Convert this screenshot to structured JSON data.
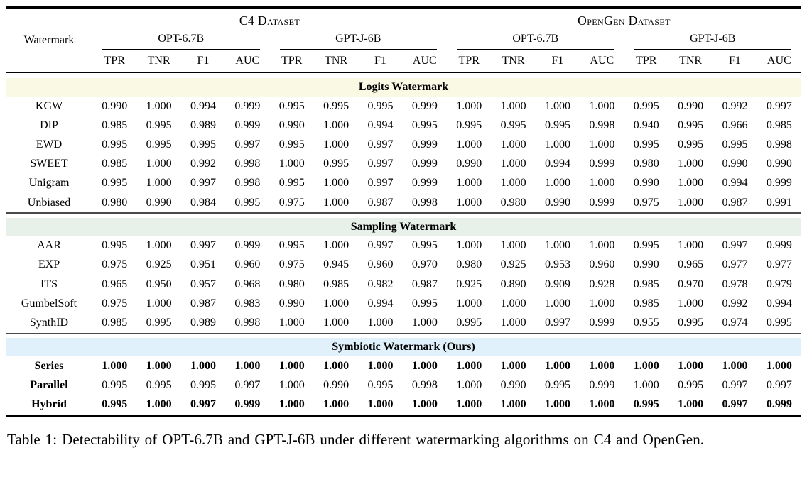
{
  "table": {
    "corner_header": "Watermark",
    "datasets": [
      "C4 Dataset",
      "OpenGen Dataset"
    ],
    "models": [
      "OPT-6.7B",
      "GPT-J-6B",
      "OPT-6.7B",
      "GPT-J-6B"
    ],
    "metrics": [
      "TPR",
      "TNR",
      "F1",
      "AUC"
    ],
    "sections": [
      {
        "title": "Logits Watermark",
        "band_color": "#faf9e4",
        "rows": [
          {
            "label": "KGW",
            "bold_label": false,
            "bold_values": false,
            "values": [
              "0.990",
              "1.000",
              "0.994",
              "0.999",
              "0.995",
              "0.995",
              "0.995",
              "0.999",
              "1.000",
              "1.000",
              "1.000",
              "1.000",
              "0.995",
              "0.990",
              "0.992",
              "0.997"
            ]
          },
          {
            "label": "DIP",
            "bold_label": false,
            "bold_values": false,
            "values": [
              "0.985",
              "0.995",
              "0.989",
              "0.999",
              "0.990",
              "1.000",
              "0.994",
              "0.995",
              "0.995",
              "0.995",
              "0.995",
              "0.998",
              "0.940",
              "0.995",
              "0.966",
              "0.985"
            ]
          },
          {
            "label": "EWD",
            "bold_label": false,
            "bold_values": false,
            "values": [
              "0.995",
              "0.995",
              "0.995",
              "0.997",
              "0.995",
              "1.000",
              "0.997",
              "0.999",
              "1.000",
              "1.000",
              "1.000",
              "1.000",
              "0.995",
              "0.995",
              "0.995",
              "0.998"
            ]
          },
          {
            "label": "SWEET",
            "bold_label": false,
            "bold_values": false,
            "values": [
              "0.985",
              "1.000",
              "0.992",
              "0.998",
              "1.000",
              "0.995",
              "0.997",
              "0.999",
              "0.990",
              "1.000",
              "0.994",
              "0.999",
              "0.980",
              "1.000",
              "0.990",
              "0.990"
            ]
          },
          {
            "label": "Unigram",
            "bold_label": false,
            "bold_values": false,
            "values": [
              "0.995",
              "1.000",
              "0.997",
              "0.998",
              "0.995",
              "1.000",
              "0.997",
              "0.999",
              "1.000",
              "1.000",
              "1.000",
              "1.000",
              "0.990",
              "1.000",
              "0.994",
              "0.999"
            ]
          },
          {
            "label": "Unbiased",
            "bold_label": false,
            "bold_values": false,
            "values": [
              "0.980",
              "0.990",
              "0.984",
              "0.995",
              "0.975",
              "1.000",
              "0.987",
              "0.998",
              "1.000",
              "0.980",
              "0.990",
              "0.999",
              "0.975",
              "1.000",
              "0.987",
              "0.991"
            ]
          }
        ]
      },
      {
        "title": "Sampling Watermark",
        "band_color": "#e7f1ea",
        "rows": [
          {
            "label": "AAR",
            "bold_label": false,
            "bold_values": false,
            "values": [
              "0.995",
              "1.000",
              "0.997",
              "0.999",
              "0.995",
              "1.000",
              "0.997",
              "0.995",
              "1.000",
              "1.000",
              "1.000",
              "1.000",
              "0.995",
              "1.000",
              "0.997",
              "0.999"
            ]
          },
          {
            "label": "EXP",
            "bold_label": false,
            "bold_values": false,
            "values": [
              "0.975",
              "0.925",
              "0.951",
              "0.960",
              "0.975",
              "0.945",
              "0.960",
              "0.970",
              "0.980",
              "0.925",
              "0.953",
              "0.960",
              "0.990",
              "0.965",
              "0.977",
              "0.977"
            ]
          },
          {
            "label": "ITS",
            "bold_label": false,
            "bold_values": false,
            "values": [
              "0.965",
              "0.950",
              "0.957",
              "0.968",
              "0.980",
              "0.985",
              "0.982",
              "0.987",
              "0.925",
              "0.890",
              "0.909",
              "0.928",
              "0.985",
              "0.970",
              "0.978",
              "0.979"
            ]
          },
          {
            "label": "GumbelSoft",
            "bold_label": false,
            "bold_values": false,
            "values": [
              "0.975",
              "1.000",
              "0.987",
              "0.983",
              "0.990",
              "1.000",
              "0.994",
              "0.995",
              "1.000",
              "1.000",
              "1.000",
              "1.000",
              "0.985",
              "1.000",
              "0.992",
              "0.994"
            ]
          },
          {
            "label": "SynthID",
            "bold_label": false,
            "bold_values": false,
            "values": [
              "0.985",
              "0.995",
              "0.989",
              "0.998",
              "1.000",
              "1.000",
              "1.000",
              "1.000",
              "0.995",
              "1.000",
              "0.997",
              "0.999",
              "0.955",
              "0.995",
              "0.974",
              "0.995"
            ]
          }
        ]
      },
      {
        "title": "Symbiotic Watermark (Ours)",
        "band_color": "#e1f1fb",
        "rows": [
          {
            "label": "Series",
            "bold_label": true,
            "bold_values": true,
            "values": [
              "1.000",
              "1.000",
              "1.000",
              "1.000",
              "1.000",
              "1.000",
              "1.000",
              "1.000",
              "1.000",
              "1.000",
              "1.000",
              "1.000",
              "1.000",
              "1.000",
              "1.000",
              "1.000"
            ]
          },
          {
            "label": "Parallel",
            "bold_label": true,
            "bold_values": false,
            "values": [
              "0.995",
              "0.995",
              "0.995",
              "0.997",
              "1.000",
              "0.990",
              "0.995",
              "0.998",
              "1.000",
              "0.990",
              "0.995",
              "0.999",
              "1.000",
              "0.995",
              "0.997",
              "0.997"
            ]
          },
          {
            "label": "Hybrid",
            "bold_label": true,
            "bold_values": true,
            "values": [
              "0.995",
              "1.000",
              "0.997",
              "0.999",
              "1.000",
              "1.000",
              "1.000",
              "1.000",
              "1.000",
              "1.000",
              "1.000",
              "1.000",
              "0.995",
              "1.000",
              "0.997",
              "0.999"
            ]
          }
        ]
      }
    ]
  },
  "caption": "Table 1: Detectability of OPT-6.7B and GPT-J-6B under different watermarking algorithms on C4 and OpenGen."
}
